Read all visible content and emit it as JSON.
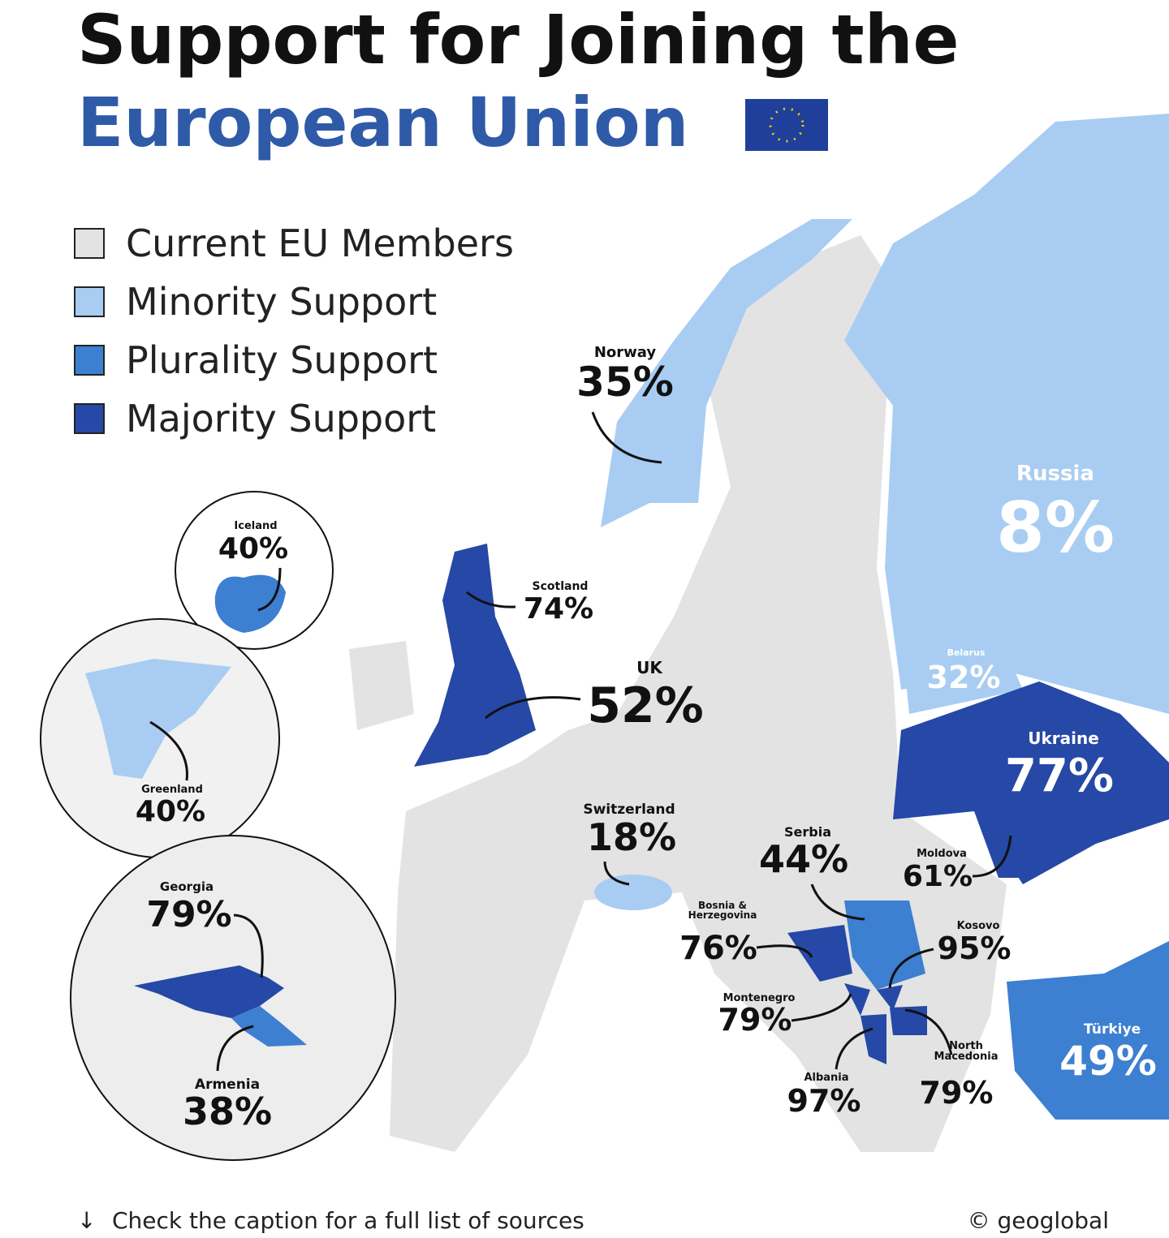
{
  "title": {
    "line1": "Support for Joining the",
    "line2": "European Union"
  },
  "legend": [
    {
      "label": "Current EU Members",
      "color": "#e3e3e3"
    },
    {
      "label": "Minority Support",
      "color": "#a9cdf2"
    },
    {
      "label": "Plurality Support",
      "color": "#3d7fd0"
    },
    {
      "label": "Majority Support",
      "color": "#2648a6"
    }
  ],
  "countries": [
    {
      "name": [
        "Norway"
      ],
      "value": "35%"
    },
    {
      "name": [
        "Russia"
      ],
      "value": "8%"
    },
    {
      "name": [
        "Iceland"
      ],
      "value": "40%"
    },
    {
      "name": [
        "Scotland"
      ],
      "value": "74%"
    },
    {
      "name": [
        "UK"
      ],
      "value": "52%"
    },
    {
      "name": [
        "Belarus"
      ],
      "value": "32%"
    },
    {
      "name": [
        "Ukraine"
      ],
      "value": "77%"
    },
    {
      "name": [
        "Greenland"
      ],
      "value": "40%"
    },
    {
      "name": [
        "Switzerland"
      ],
      "value": "18%"
    },
    {
      "name": [
        "Serbia"
      ],
      "value": "44%"
    },
    {
      "name": [
        "Moldova"
      ],
      "value": "61%"
    },
    {
      "name": [
        "Georgia"
      ],
      "value": "79%"
    },
    {
      "name": [
        "Bosnia &",
        "Herzegovina"
      ],
      "value": "76%"
    },
    {
      "name": [
        "Kosovo"
      ],
      "value": "95%"
    },
    {
      "name": [
        "Montenegro"
      ],
      "value": "79%"
    },
    {
      "name": [
        "Türkiye"
      ],
      "value": "49%"
    },
    {
      "name": [
        "North",
        "Macedonia"
      ],
      "value": "79%"
    },
    {
      "name": [
        "Albania"
      ],
      "value": "97%"
    },
    {
      "name": [
        "Armenia"
      ],
      "value": "38%"
    }
  ],
  "footer": {
    "note": "Check the caption for a full list of sources",
    "credit": "© geoglobal"
  }
}
